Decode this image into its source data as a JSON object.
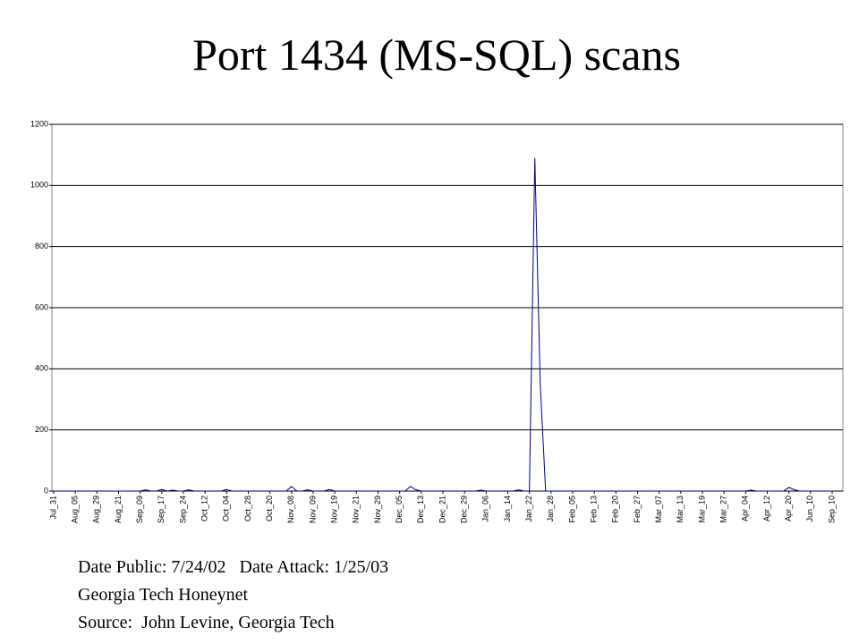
{
  "chart_data": {
    "type": "line",
    "title": "Port 1434 (MS-SQL) scans",
    "annotations": [
      "Date Public: 7/24/02   Date Attack: 1/25/03",
      "Georgia Tech Honeynet",
      "Source:  John Levine, Georgia Tech"
    ],
    "categories": [
      "Jul_31",
      null,
      null,
      null,
      "Aug_05",
      null,
      null,
      null,
      "Aug_29",
      null,
      null,
      null,
      "Aug_21",
      null,
      null,
      null,
      "Sep_09",
      null,
      null,
      null,
      "Sep_17",
      null,
      null,
      null,
      "Sep_24",
      null,
      null,
      null,
      "Oct_12",
      null,
      null,
      null,
      "Oct_04",
      null,
      null,
      null,
      "Oct_28",
      null,
      null,
      null,
      "Oct_20",
      null,
      null,
      null,
      "Nov_08",
      null,
      null,
      null,
      "Nov_09",
      null,
      null,
      null,
      "Nov_19",
      null,
      null,
      null,
      "Nov_21",
      null,
      null,
      null,
      "Nov_29",
      null,
      null,
      null,
      "Dec_05",
      null,
      null,
      null,
      "Dec_13",
      null,
      null,
      null,
      "Dec_21",
      null,
      null,
      null,
      "Dec_29",
      null,
      null,
      null,
      "Jan_06",
      null,
      null,
      null,
      "Jan_14",
      null,
      null,
      null,
      "Jan_22",
      null,
      null,
      null,
      "Jan_28",
      null,
      null,
      null,
      "Feb_05",
      null,
      null,
      null,
      "Feb_13",
      null,
      null,
      null,
      "Feb_20",
      null,
      null,
      null,
      "Feb_27",
      null,
      null,
      null,
      "Mar_07",
      null,
      null,
      null,
      "Mar_13",
      null,
      null,
      null,
      "Mar_19",
      null,
      null,
      null,
      "Mar_27",
      null,
      null,
      null,
      "Apr_04",
      null,
      null,
      null,
      "Apr_12",
      null,
      null,
      null,
      "Apr_20",
      null,
      null,
      null,
      "Jun_10",
      null,
      null,
      null,
      "Sep_10"
    ],
    "values": [
      0,
      0,
      0,
      0,
      0,
      0,
      0,
      0,
      0,
      0,
      0,
      0,
      0,
      0,
      0,
      0,
      0,
      4,
      0,
      0,
      5,
      0,
      3,
      0,
      0,
      4,
      0,
      0,
      0,
      0,
      0,
      0,
      5,
      0,
      0,
      0,
      0,
      0,
      0,
      0,
      0,
      0,
      0,
      0,
      15,
      0,
      0,
      4,
      0,
      0,
      0,
      5,
      0,
      0,
      0,
      0,
      0,
      0,
      0,
      0,
      0,
      0,
      0,
      0,
      0,
      0,
      15,
      4,
      0,
      0,
      0,
      0,
      0,
      0,
      0,
      0,
      0,
      0,
      0,
      3,
      0,
      0,
      0,
      0,
      0,
      0,
      4,
      0,
      0,
      1090,
      350,
      0,
      0,
      0,
      0,
      0,
      0,
      0,
      0,
      0,
      0,
      0,
      0,
      0,
      0,
      0,
      0,
      0,
      0,
      0,
      0,
      0,
      0,
      0,
      0,
      0,
      0,
      0,
      0,
      0,
      0,
      0,
      0,
      0,
      0,
      0,
      0,
      0,
      0,
      3,
      0,
      0,
      0,
      0,
      0,
      0,
      12,
      4,
      0,
      0,
      0,
      0,
      0,
      0,
      0
    ],
    "color": "#000080",
    "ylim": [
      0,
      1200
    ],
    "yticks": [
      0,
      200,
      400,
      600,
      800,
      1000,
      1200
    ],
    "grid": true
  }
}
